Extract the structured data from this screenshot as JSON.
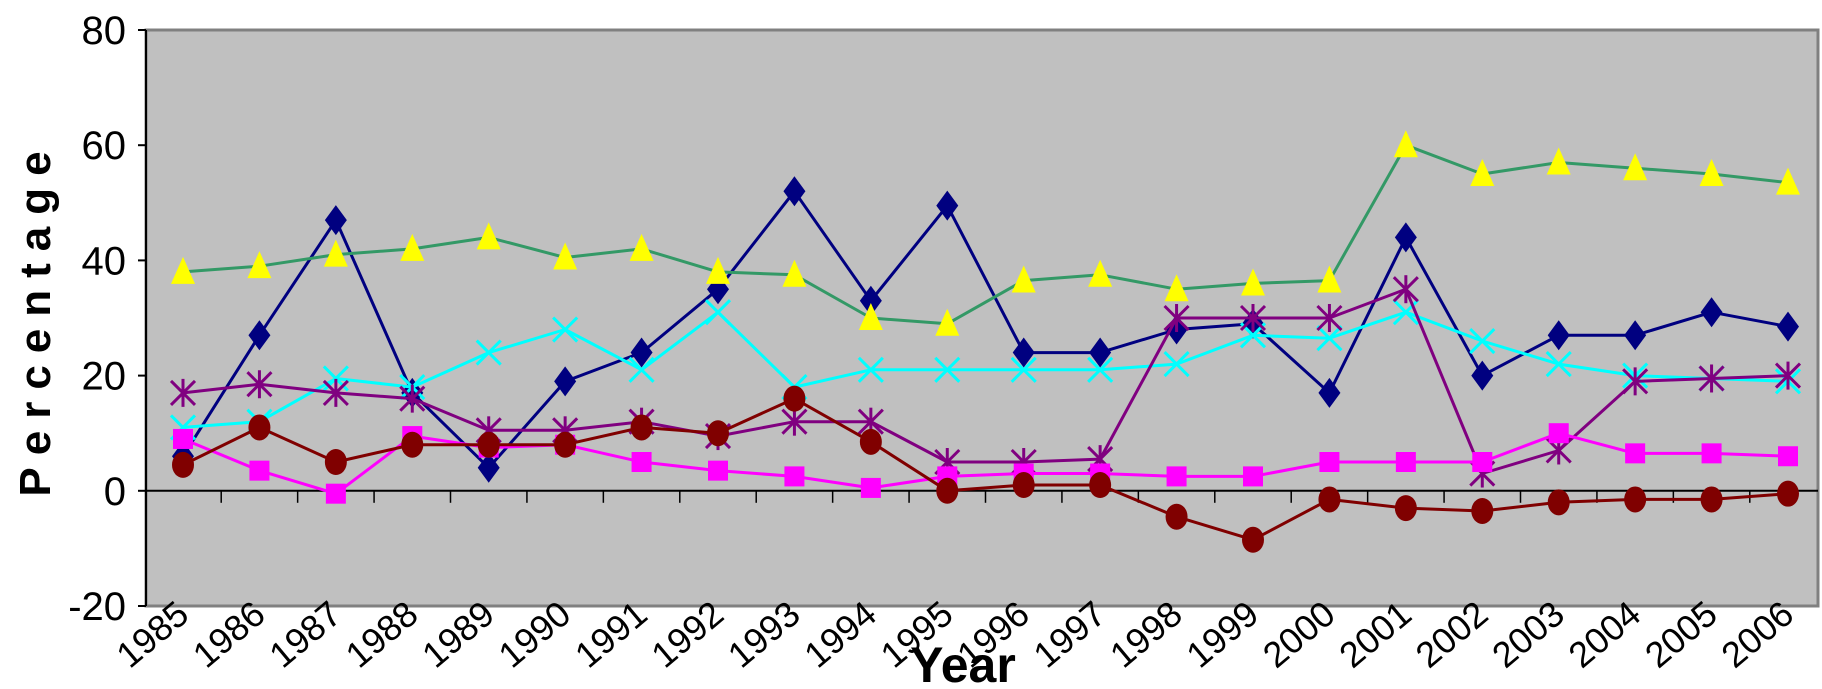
{
  "chart_data": {
    "type": "line",
    "title": "",
    "xlabel": "Year",
    "ylabel": "Percentage",
    "ylim": [
      -20,
      80
    ],
    "yticks": [
      "-20",
      "0",
      "20",
      "40",
      "60",
      "80"
    ],
    "x": [
      "1985",
      "1986",
      "1987",
      "1988",
      "1989",
      "1990",
      "1991",
      "1992",
      "1993",
      "1994",
      "1995",
      "1996",
      "1997",
      "1998",
      "1999",
      "2000",
      "2001",
      "2002",
      "2003",
      "2004",
      "2005",
      "2006"
    ],
    "grid": false,
    "legend": "none",
    "plot_background": "#c0c0c0",
    "series": [
      {
        "color": "#000080",
        "marker": "diamond",
        "line": "#000080",
        "values": [
          6,
          27,
          47,
          17,
          4,
          19,
          24,
          35,
          52,
          33,
          49.5,
          24,
          24,
          28,
          29,
          17,
          44,
          20,
          27,
          27,
          31,
          28.5
        ]
      },
      {
        "color": "#ffff00",
        "marker": "triangle",
        "line": "#339966",
        "values": [
          38,
          39,
          41,
          42,
          44,
          40.5,
          42,
          38,
          37.5,
          30,
          29,
          36.5,
          37.5,
          35,
          36,
          36.5,
          60,
          55,
          57,
          56,
          55,
          53.5
        ]
      },
      {
        "color": "#00ffff",
        "marker": "x",
        "line": "#00ffff",
        "values": [
          11,
          12,
          19.5,
          18,
          24,
          28,
          21,
          31,
          18,
          21,
          21,
          21,
          21,
          22,
          27,
          26.5,
          31,
          26,
          22,
          20,
          19.5,
          19
        ]
      },
      {
        "color": "#800080",
        "marker": "star",
        "line": "#800080",
        "values": [
          17,
          18.5,
          17,
          16,
          10.5,
          10.5,
          12,
          9.5,
          12,
          12,
          5,
          5,
          5.5,
          30,
          30,
          30,
          35,
          3,
          7,
          19,
          19.5,
          20
        ]
      },
      {
        "color": "#ff00ff",
        "marker": "square",
        "line": "#ff00ff",
        "values": [
          9,
          3.5,
          -0.5,
          9.5,
          7.5,
          8,
          5,
          3.5,
          2.5,
          0.5,
          2.5,
          3,
          3,
          2.5,
          2.5,
          5,
          5,
          5,
          10,
          6.5,
          6.5,
          6
        ]
      },
      {
        "color": "#800000",
        "marker": "circle",
        "line": "#800000",
        "values": [
          4.5,
          11,
          5,
          8,
          8,
          8,
          11,
          10,
          16,
          8.5,
          0,
          1,
          1,
          -4.5,
          -8.5,
          -1.5,
          -3,
          -3.5,
          -2,
          -1.5,
          -1.5,
          -0.5
        ]
      }
    ]
  }
}
